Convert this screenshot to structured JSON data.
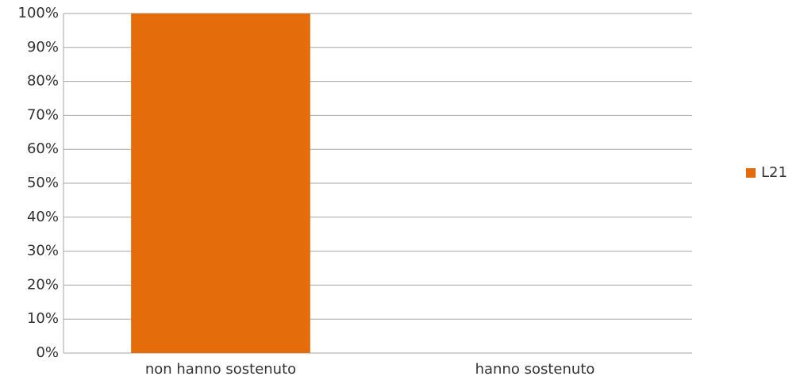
{
  "chart_data": {
    "type": "bar",
    "categories": [
      "non hanno sostenuto",
      "hanno sostenuto"
    ],
    "series": [
      {
        "name": "L21",
        "color": "#e46c0a",
        "values": [
          100,
          0
        ]
      }
    ],
    "ylim": [
      0,
      100
    ],
    "yticks": [
      {
        "value": 0,
        "label": "0%"
      },
      {
        "value": 10,
        "label": "10%"
      },
      {
        "value": 20,
        "label": "20%"
      },
      {
        "value": 30,
        "label": "30%"
      },
      {
        "value": 40,
        "label": "40%"
      },
      {
        "value": 50,
        "label": "50%"
      },
      {
        "value": 60,
        "label": "60%"
      },
      {
        "value": 70,
        "label": "70%"
      },
      {
        "value": 80,
        "label": "80%"
      },
      {
        "value": 90,
        "label": "90%"
      },
      {
        "value": 100,
        "label": "100%"
      }
    ],
    "grid": true,
    "legend": "right"
  }
}
